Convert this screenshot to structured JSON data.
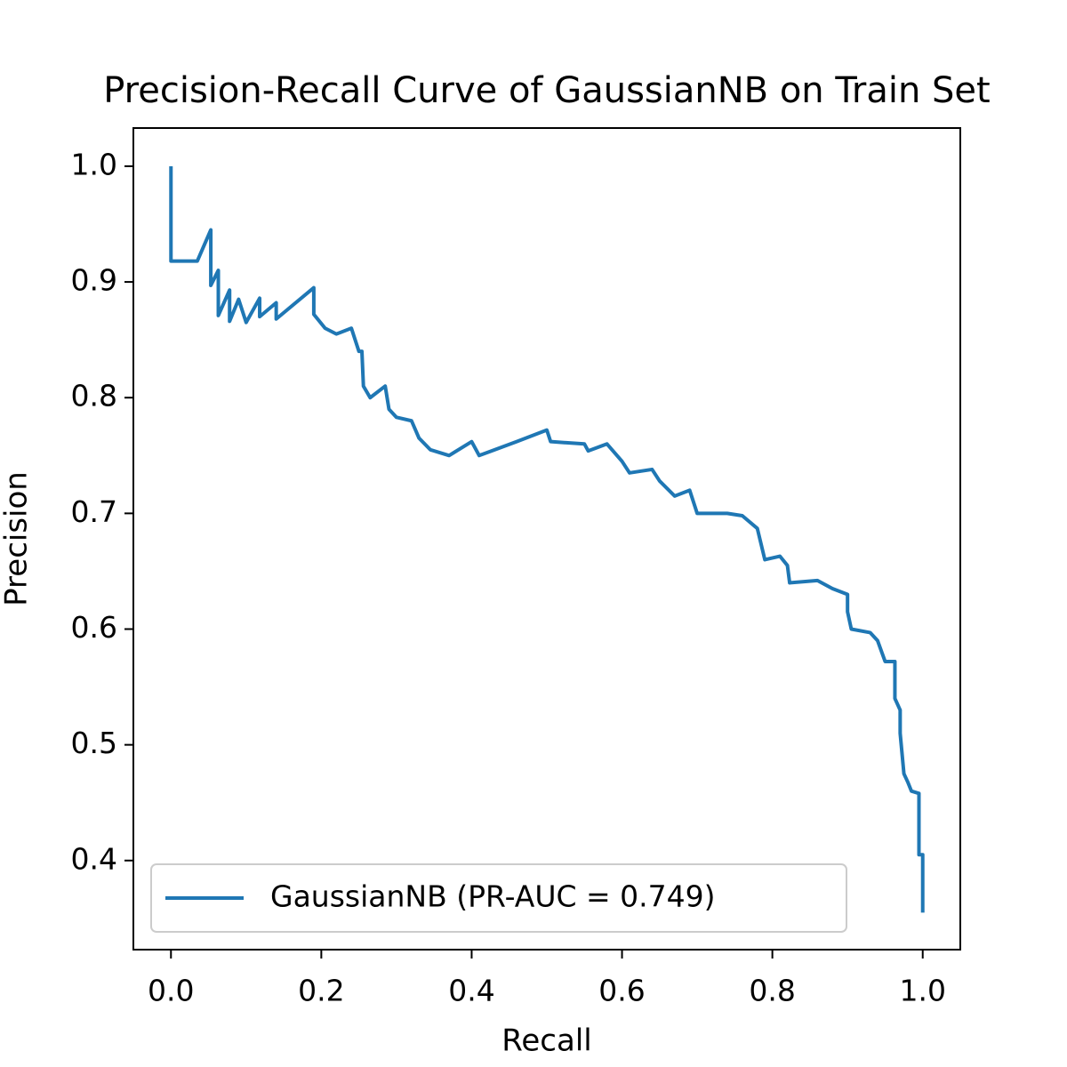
{
  "chart_data": {
    "type": "line",
    "title": "Precision-Recall Curve of GaussianNB on Train Set",
    "x_label": "Recall",
    "y_label": "Precision",
    "x": [
      0,
      0,
      0.035,
      0.053,
      0.053,
      0.063,
      0.063,
      0.078,
      0.078,
      0.09,
      0.1,
      0.118,
      0.118,
      0.14,
      0.14,
      0.19,
      0.19,
      0.205,
      0.22,
      0.24,
      0.25,
      0.254,
      0.256,
      0.265,
      0.285,
      0.29,
      0.3,
      0.32,
      0.33,
      0.345,
      0.37,
      0.4,
      0.41,
      0.46,
      0.5,
      0.505,
      0.55,
      0.555,
      0.58,
      0.6,
      0.61,
      0.64,
      0.65,
      0.67,
      0.69,
      0.7,
      0.74,
      0.76,
      0.78,
      0.79,
      0.81,
      0.82,
      0.823,
      0.86,
      0.88,
      0.9,
      0.9,
      0.905,
      0.93,
      0.94,
      0.95,
      0.963,
      0.963,
      0.97,
      0.97,
      0.975,
      0.98,
      0.985,
      0.995,
      0.995,
      1.0,
      1.0
    ],
    "series": [
      {
        "name": "GaussianNB (PR-AUC = 0.749)",
        "color": "#1f77b4",
        "values": [
          1.0,
          0.918,
          0.918,
          0.945,
          0.897,
          0.91,
          0.871,
          0.893,
          0.866,
          0.885,
          0.865,
          0.886,
          0.87,
          0.882,
          0.868,
          0.895,
          0.872,
          0.86,
          0.855,
          0.86,
          0.84,
          0.84,
          0.81,
          0.8,
          0.81,
          0.79,
          0.783,
          0.78,
          0.765,
          0.755,
          0.75,
          0.762,
          0.75,
          0.762,
          0.772,
          0.762,
          0.76,
          0.754,
          0.76,
          0.745,
          0.735,
          0.738,
          0.728,
          0.715,
          0.72,
          0.7,
          0.7,
          0.698,
          0.687,
          0.66,
          0.663,
          0.655,
          0.64,
          0.642,
          0.635,
          0.63,
          0.615,
          0.6,
          0.597,
          0.59,
          0.572,
          0.572,
          0.54,
          0.53,
          0.51,
          0.475,
          0.468,
          0.46,
          0.458,
          0.405,
          0.405,
          0.355
        ]
      }
    ],
    "xlim": [
      -0.05,
      1.05
    ],
    "ylim": [
      0.323,
      1.033
    ],
    "xticks": [
      {
        "value": 0,
        "label": "0.0"
      },
      0.2,
      0.4,
      0.6,
      0.8,
      {
        "value": 1,
        "label": "1.0"
      }
    ],
    "yticks": [
      0.4,
      0.5,
      0.6,
      0.7,
      0.8,
      0.9,
      {
        "value": 1,
        "label": "1.0"
      }
    ],
    "grid": false,
    "legend": "lower left"
  }
}
